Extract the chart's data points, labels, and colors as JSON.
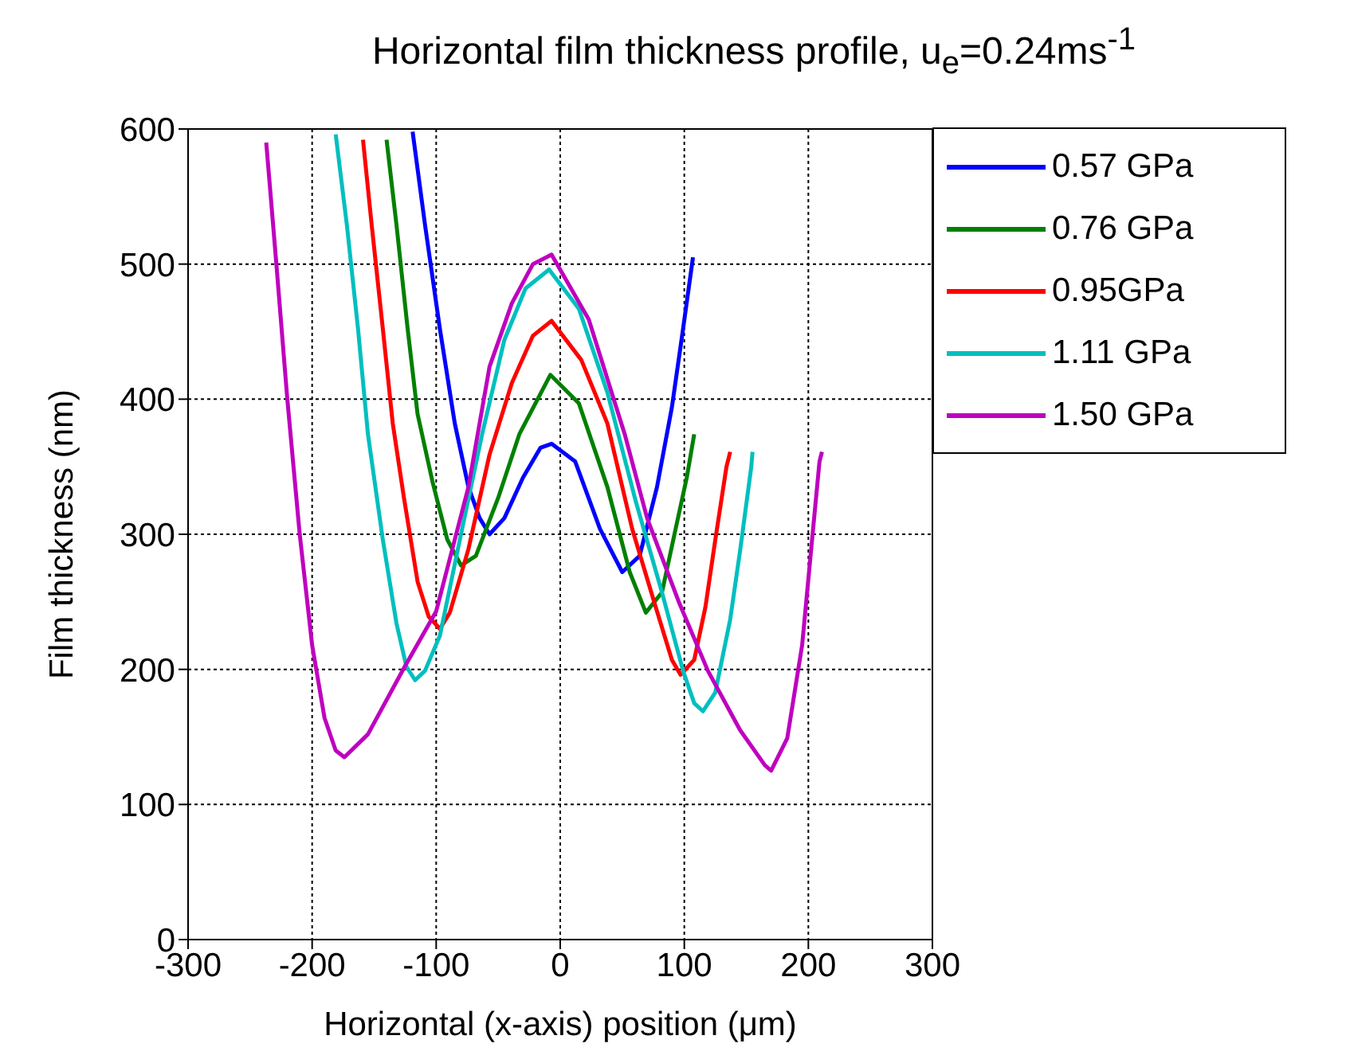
{
  "chart_data": {
    "type": "line",
    "title": "Horizontal film thickness profile, u$_{e}$=0.24ms$^{-1}$",
    "xlabel": "Horizontal (x-axis) position (μm)",
    "ylabel": "Film thickness (nm)",
    "xlim": [
      -300,
      300
    ],
    "xticks": [
      -300,
      -200,
      -100,
      0,
      100,
      200,
      300
    ],
    "ylim": [
      0,
      600
    ],
    "yticks": [
      0,
      100,
      200,
      300,
      400,
      500,
      600
    ],
    "grid": true,
    "legend": "top right",
    "marker": "none",
    "line_style": "solid",
    "series": [
      {
        "name": "0.57 GPa",
        "color": "#0000ff",
        "x": [
          -119,
          -109,
          -97,
          -85,
          -74,
          -65,
          -57,
          -45,
          -30,
          -16,
          -7,
          12,
          32,
          50,
          64,
          78,
          90,
          99,
          107
        ],
        "values": [
          598,
          529,
          452,
          382,
          335,
          312,
          300,
          312,
          342,
          364,
          367,
          354,
          304,
          272,
          284,
          335,
          394,
          452,
          505
        ]
      },
      {
        "name": "0.76 GPa",
        "color": "#008000",
        "x": [
          -140,
          -132,
          -123,
          -115,
          -103,
          -91,
          -80,
          -68,
          -50,
          -33,
          -8,
          15,
          38,
          56,
          69,
          82,
          93,
          102,
          108
        ],
        "values": [
          592,
          529,
          452,
          389,
          339,
          296,
          277,
          284,
          327,
          374,
          418,
          397,
          335,
          272,
          242,
          257,
          304,
          342,
          374
        ]
      },
      {
        "name": "0.95GPa",
        "color": "#ff0000",
        "x": [
          -159,
          -152,
          -143,
          -135,
          -126,
          -115,
          -106,
          -97,
          -89,
          -74,
          -57,
          -39,
          -22,
          -7,
          17,
          38,
          58,
          76,
          90,
          97,
          108,
          117,
          125,
          134,
          137
        ],
        "values": [
          592,
          529,
          452,
          382,
          327,
          265,
          239,
          230,
          242,
          289,
          359,
          412,
          447,
          458,
          429,
          382,
          304,
          249,
          207,
          196,
          207,
          246,
          296,
          350,
          361
        ]
      },
      {
        "name": "1.11 GPa",
        "color": "#00bfbf",
        "x": [
          -181,
          -172,
          -163,
          -155,
          -143,
          -132,
          -124,
          -117,
          -109,
          -97,
          -80,
          -63,
          -45,
          -28,
          -9,
          15,
          38,
          61,
          82,
          99,
          108,
          115,
          125,
          137,
          145,
          154,
          155
        ],
        "values": [
          596,
          529,
          452,
          374,
          296,
          234,
          202,
          192,
          199,
          225,
          300,
          374,
          444,
          482,
          496,
          467,
          405,
          324,
          257,
          199,
          175,
          169,
          183,
          237,
          288,
          350,
          361
        ]
      },
      {
        "name": "1.50 GPa",
        "color": "#bf00bf",
        "x": [
          -237,
          -229,
          -220,
          -210,
          -200,
          -190,
          -181,
          -174,
          -155,
          -126,
          -100,
          -74,
          -57,
          -39,
          -22,
          -7,
          23,
          52,
          70,
          96,
          119,
          145,
          165,
          170,
          183,
          195,
          203,
          209,
          211
        ],
        "values": [
          590,
          502,
          400,
          300,
          218,
          164,
          140,
          135,
          152,
          201,
          243,
          335,
          424,
          471,
          500,
          507,
          459,
          374,
          312,
          249,
          199,
          155,
          129,
          125,
          149,
          218,
          296,
          354,
          361
        ]
      }
    ]
  }
}
